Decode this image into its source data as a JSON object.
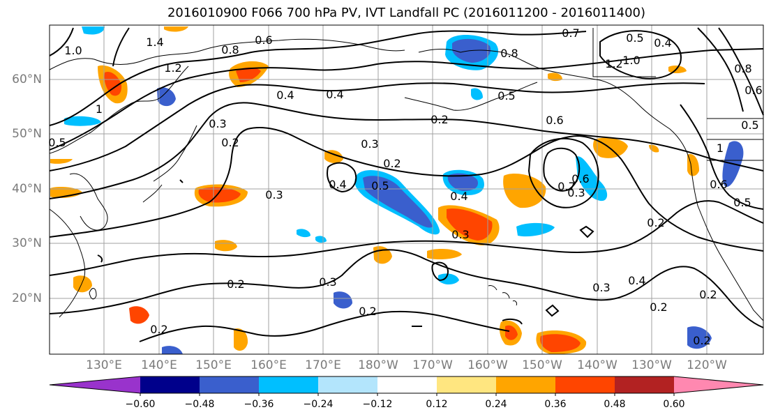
{
  "title": "2016010900 F066 700 hPa PV, IVT Landfall PC (2016011200 - 2016011400)",
  "lat_labels": [
    "60°N",
    "50°N",
    "40°N",
    "30°N",
    "20°N"
  ],
  "lon_labels": [
    "130°E",
    "140°E",
    "150°E",
    "160°E",
    "170°E",
    "180°W",
    "170°W",
    "160°W",
    "150°W",
    "140°W",
    "130°W",
    "120°W"
  ],
  "colorbar": {
    "ticks": [
      "−0.60",
      "−0.48",
      "−0.36",
      "−0.24",
      "−0.12",
      "0.12",
      "0.24",
      "0.36",
      "0.48",
      "0.60"
    ],
    "colors": [
      "#9933cc",
      "#00008b",
      "#3a5fcd",
      "#00bfff",
      "#b3e5fc",
      "#ffffff",
      "#ffe680",
      "#ffa500",
      "#ff4500",
      "#b22222",
      "#ff88b0"
    ]
  },
  "contour_labels": [
    "0.6",
    "0.8",
    "0.7",
    "0.8",
    "0.4",
    "1.2",
    "1.0",
    "0.5",
    "0.4",
    "1.0",
    "1.4",
    "1.2",
    "1",
    "0.5",
    "0.4",
    "0.3",
    "0.2",
    "0.2",
    "0.5",
    "0.6",
    "0.3",
    "0.2",
    "0.4",
    "0.5",
    "0.4",
    "0.7",
    "0.6",
    "0.3",
    "0.3",
    "0.3",
    "0.2",
    "0.2",
    "0.3",
    "0.2",
    "0.3",
    "0.4",
    "0.2",
    "0.2",
    "0.2",
    "0.2",
    "0.6",
    "0.5",
    "0.6",
    "0.5",
    "1",
    "0.8"
  ],
  "colors": {
    "contour": "#000000",
    "grid": "#a0a0a0",
    "axis_label": "#7a7a7a"
  }
}
